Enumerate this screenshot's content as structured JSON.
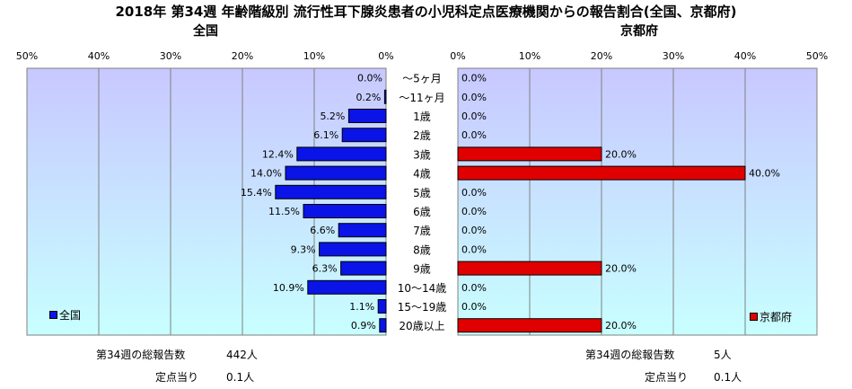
{
  "title": "2018年 第34週 年齢階級別 流行性耳下腺炎患者の小児科定点医療機関からの報告割合(全国、京都府)",
  "colors": {
    "national": "#0a14e6",
    "kyoto": "#e00000",
    "plot_bg_top": "#c8c8ff",
    "plot_bg_bottom": "#c8ffff"
  },
  "chart_data": [
    {
      "type": "bar",
      "orientation": "horizontal",
      "direction": "left",
      "panel_title": "全国",
      "legend": "全国",
      "legend_position": "bottom-left",
      "xlim": [
        0,
        50
      ],
      "ticks": [
        "50%",
        "40%",
        "30%",
        "20%",
        "10%",
        "0%"
      ],
      "categories": [
        "～5ヶ月",
        "～11ヶ月",
        "1歳",
        "2歳",
        "3歳",
        "4歳",
        "5歳",
        "6歳",
        "7歳",
        "8歳",
        "9歳",
        "10～14歳",
        "15～19歳",
        "20歳以上"
      ],
      "values": [
        0.0,
        0.2,
        5.2,
        6.1,
        12.4,
        14.0,
        15.4,
        11.5,
        6.6,
        9.3,
        6.3,
        10.9,
        1.1,
        0.9
      ],
      "labels": [
        "0.0%",
        "0.2%",
        "5.2%",
        "6.1%",
        "12.4%",
        "14.0%",
        "15.4%",
        "11.5%",
        "6.6%",
        "9.3%",
        "6.3%",
        "10.9%",
        "1.1%",
        "0.9%"
      ],
      "grid": true
    },
    {
      "type": "bar",
      "orientation": "horizontal",
      "direction": "right",
      "panel_title": "京都府",
      "legend": "京都府",
      "legend_position": "bottom-right",
      "xlim": [
        0,
        50
      ],
      "ticks": [
        "0%",
        "10%",
        "20%",
        "30%",
        "40%",
        "50%"
      ],
      "categories": [
        "～5ヶ月",
        "～11ヶ月",
        "1歳",
        "2歳",
        "3歳",
        "4歳",
        "5歳",
        "6歳",
        "7歳",
        "8歳",
        "9歳",
        "10～14歳",
        "15～19歳",
        "20歳以上"
      ],
      "values": [
        0.0,
        0.0,
        0.0,
        0.0,
        20.0,
        40.0,
        0.0,
        0.0,
        0.0,
        0.0,
        20.0,
        0.0,
        0.0,
        20.0
      ],
      "labels": [
        "0.0%",
        "0.0%",
        "0.0%",
        "0.0%",
        "20.0%",
        "40.0%",
        "0.0%",
        "0.0%",
        "0.0%",
        "0.0%",
        "20.0%",
        "0.0%",
        "0.0%",
        "20.0%"
      ],
      "grid": true
    }
  ],
  "footer": {
    "national": {
      "total_label": "第34週の総報告数",
      "total_value": "442人",
      "per_label": "定点当り",
      "per_value": "0.1人"
    },
    "kyoto": {
      "total_label": "第34週の総報告数",
      "total_value": "5人",
      "per_label": "定点当り",
      "per_value": "0.1人"
    }
  }
}
